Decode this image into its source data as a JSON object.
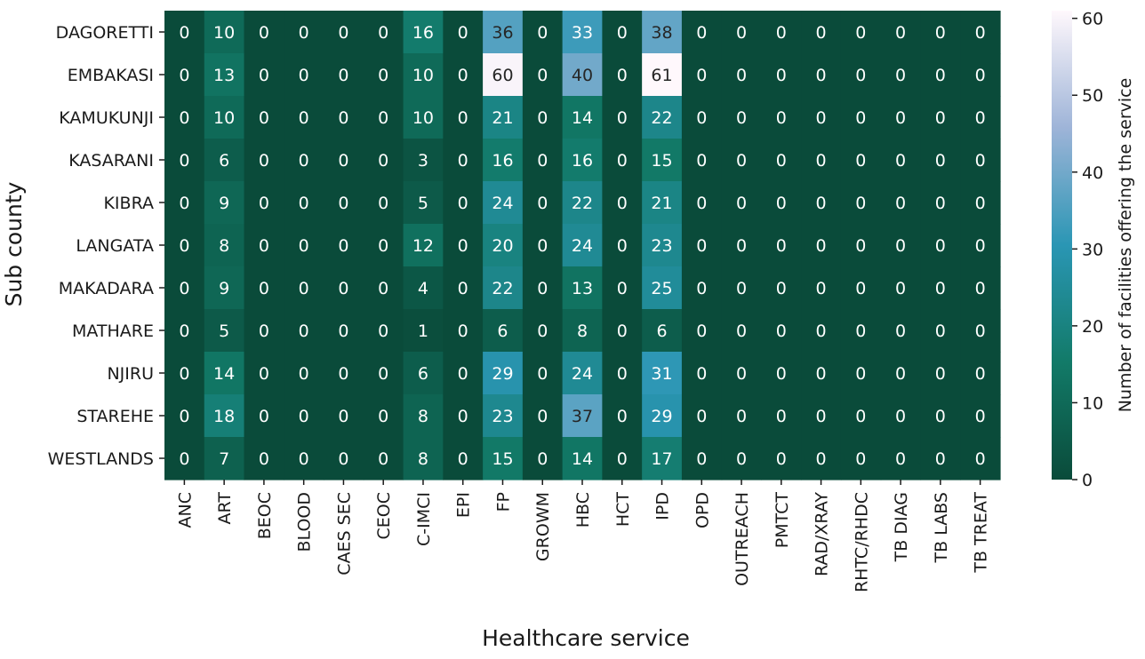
{
  "chart_data": {
    "type": "heatmap",
    "xlabel": "Healthcare service",
    "ylabel": "Sub county",
    "colorbar_label": "Number of facilities offering the service",
    "colorbar_range": [
      0,
      61
    ],
    "colorbar_ticks": [
      0,
      10,
      20,
      30,
      40,
      50,
      60
    ],
    "colormap": [
      "#0a4b3a",
      "#127a68",
      "#2a96b4",
      "#9eb4d8",
      "#fff8fc"
    ],
    "columns": [
      "ANC",
      "ART",
      "BEOC",
      "BLOOD",
      "CAES SEC",
      "CEOC",
      "C-IMCI",
      "EPI",
      "FP",
      "GROWM",
      "HBC",
      "HCT",
      "IPD",
      "OPD",
      "OUTREACH",
      "PMTCT",
      "RAD/XRAY",
      "RHTC/RHDC",
      "TB DIAG",
      "TB LABS",
      "TB TREAT"
    ],
    "rows": [
      "DAGORETTI",
      "EMBAKASI",
      "KAMUKUNJI",
      "KASARANI",
      "KIBRA",
      "LANGATA",
      "MAKADARA",
      "MATHARE",
      "NJIRU",
      "STAREHE",
      "WESTLANDS"
    ],
    "values": [
      [
        0,
        10,
        0,
        0,
        0,
        0,
        16,
        0,
        36,
        0,
        33,
        0,
        38,
        0,
        0,
        0,
        0,
        0,
        0,
        0,
        0
      ],
      [
        0,
        13,
        0,
        0,
        0,
        0,
        10,
        0,
        60,
        0,
        40,
        0,
        61,
        0,
        0,
        0,
        0,
        0,
        0,
        0,
        0
      ],
      [
        0,
        10,
        0,
        0,
        0,
        0,
        10,
        0,
        21,
        0,
        14,
        0,
        22,
        0,
        0,
        0,
        0,
        0,
        0,
        0,
        0
      ],
      [
        0,
        6,
        0,
        0,
        0,
        0,
        3,
        0,
        16,
        0,
        16,
        0,
        15,
        0,
        0,
        0,
        0,
        0,
        0,
        0,
        0
      ],
      [
        0,
        9,
        0,
        0,
        0,
        0,
        5,
        0,
        24,
        0,
        22,
        0,
        21,
        0,
        0,
        0,
        0,
        0,
        0,
        0,
        0
      ],
      [
        0,
        8,
        0,
        0,
        0,
        0,
        12,
        0,
        20,
        0,
        24,
        0,
        23,
        0,
        0,
        0,
        0,
        0,
        0,
        0,
        0
      ],
      [
        0,
        9,
        0,
        0,
        0,
        0,
        4,
        0,
        22,
        0,
        13,
        0,
        25,
        0,
        0,
        0,
        0,
        0,
        0,
        0,
        0
      ],
      [
        0,
        5,
        0,
        0,
        0,
        0,
        1,
        0,
        6,
        0,
        8,
        0,
        6,
        0,
        0,
        0,
        0,
        0,
        0,
        0,
        0
      ],
      [
        0,
        14,
        0,
        0,
        0,
        0,
        6,
        0,
        29,
        0,
        24,
        0,
        31,
        0,
        0,
        0,
        0,
        0,
        0,
        0,
        0
      ],
      [
        0,
        18,
        0,
        0,
        0,
        0,
        8,
        0,
        23,
        0,
        37,
        0,
        29,
        0,
        0,
        0,
        0,
        0,
        0,
        0,
        0
      ],
      [
        0,
        7,
        0,
        0,
        0,
        0,
        8,
        0,
        15,
        0,
        14,
        0,
        17,
        0,
        0,
        0,
        0,
        0,
        0,
        0,
        0
      ]
    ]
  }
}
